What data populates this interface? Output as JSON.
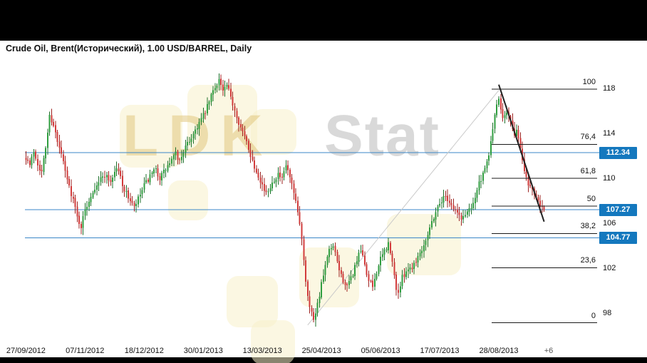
{
  "watermark": {
    "text_primary": "LDK",
    "text_secondary": "Stat",
    "block_color": "#f8f0cb"
  },
  "chart_data": {
    "type": "candlestick",
    "title": "Crude Oil, Brent(Исторический), 1.00 USD/BARREL, Daily",
    "period": "Daily",
    "y_axis": {
      "ticks": [
        118,
        114,
        110,
        106,
        102,
        98
      ],
      "min": 96.5,
      "max": 119.9
    },
    "x_axis": {
      "labels": [
        "27/09/2012",
        "07/11/2012",
        "18/12/2012",
        "30/01/2013",
        "13/03/2013",
        "25/04/2013",
        "05/06/2013",
        "17/07/2013",
        "28/08/2013"
      ],
      "future_offset_label": "+6",
      "bars_per_label": 30
    },
    "horizontal_lines": [
      {
        "price": 112.34,
        "label": "112.34",
        "color": "#3b87c8"
      },
      {
        "price": 107.27,
        "label": "107.27",
        "color": "#3b87c8"
      },
      {
        "price": 104.77,
        "label": "104.77",
        "color": "#3b87c8"
      }
    ],
    "price_tag_bg": "#1478be",
    "fibonacci": {
      "swing_low": 97.2,
      "swing_high": 118.0,
      "line_color": "#1a1a1a",
      "levels": [
        {
          "label": "100",
          "ratio": 1.0
        },
        {
          "label": "76,4",
          "ratio": 0.764
        },
        {
          "label": "61,8",
          "ratio": 0.618
        },
        {
          "label": "50",
          "ratio": 0.5
        },
        {
          "label": "38,2",
          "ratio": 0.382
        },
        {
          "label": "23,6",
          "ratio": 0.236
        },
        {
          "label": "0",
          "ratio": 0.0
        }
      ]
    },
    "trendlines": [
      {
        "name": "uptrend",
        "from_day": 143,
        "from_price": 97.0,
        "to_day": 240,
        "to_price": 117.9,
        "color": "#c9c9c9",
        "width": 1
      },
      {
        "name": "downtrend",
        "from_day": 240,
        "from_price": 118.4,
        "to_day": 263,
        "to_price": 106.2,
        "color": "#222222",
        "width": 2
      }
    ],
    "candle_colors": {
      "up": "#2f9e3f",
      "down": "#d23b3b",
      "up_dark": "#1d6f2b",
      "down_dark": "#9c221f"
    },
    "close_path": [
      [
        0,
        112.0
      ],
      [
        2,
        111.2
      ],
      [
        4,
        112.5
      ],
      [
        6,
        111.4
      ],
      [
        8,
        110.6
      ],
      [
        10,
        112.8
      ],
      [
        12,
        115.6
      ],
      [
        14,
        114.9
      ],
      [
        16,
        113.2
      ],
      [
        18,
        112.2
      ],
      [
        20,
        110.6
      ],
      [
        22,
        109.3
      ],
      [
        24,
        108.2
      ],
      [
        26,
        106.6
      ],
      [
        28,
        105.8
      ],
      [
        30,
        107.2
      ],
      [
        33,
        108.6
      ],
      [
        36,
        109.6
      ],
      [
        40,
        110.4
      ],
      [
        43,
        109.8
      ],
      [
        46,
        111.0
      ],
      [
        48,
        110.2
      ],
      [
        50,
        109.0
      ],
      [
        53,
        108.1
      ],
      [
        55,
        107.4
      ],
      [
        58,
        108.6
      ],
      [
        60,
        109.4
      ],
      [
        63,
        110.2
      ],
      [
        66,
        110.8
      ],
      [
        68,
        110.1
      ],
      [
        70,
        110.6
      ],
      [
        73,
        111.4
      ],
      [
        76,
        112.2
      ],
      [
        78,
        111.6
      ],
      [
        80,
        112.5
      ],
      [
        83,
        113.4
      ],
      [
        86,
        114.4
      ],
      [
        88,
        115.0
      ],
      [
        90,
        115.6
      ],
      [
        92,
        116.4
      ],
      [
        94,
        117.4
      ],
      [
        96,
        118.2
      ],
      [
        98,
        118.9
      ],
      [
        100,
        117.8
      ],
      [
        102,
        118.3
      ],
      [
        104,
        117.2
      ],
      [
        106,
        116.2
      ],
      [
        108,
        115.1
      ],
      [
        110,
        114.1
      ],
      [
        112,
        113.3
      ],
      [
        114,
        112.2
      ],
      [
        116,
        111.1
      ],
      [
        118,
        110.4
      ],
      [
        120,
        109.5
      ],
      [
        122,
        108.6
      ],
      [
        124,
        109.4
      ],
      [
        126,
        110.0
      ],
      [
        128,
        110.4
      ],
      [
        130,
        109.9
      ],
      [
        132,
        111.2
      ],
      [
        134,
        110.1
      ],
      [
        136,
        108.6
      ],
      [
        138,
        107.0
      ],
      [
        140,
        104.8
      ],
      [
        142,
        101.0
      ],
      [
        144,
        98.6
      ],
      [
        146,
        97.6
      ],
      [
        148,
        98.9
      ],
      [
        150,
        100.6
      ],
      [
        152,
        102.2
      ],
      [
        154,
        103.6
      ],
      [
        156,
        103.9
      ],
      [
        158,
        102.6
      ],
      [
        160,
        101.4
      ],
      [
        163,
        100.3
      ],
      [
        166,
        101.6
      ],
      [
        168,
        102.8
      ],
      [
        170,
        103.6
      ],
      [
        172,
        102.4
      ],
      [
        174,
        100.9
      ],
      [
        176,
        100.4
      ],
      [
        178,
        101.8
      ],
      [
        180,
        102.8
      ],
      [
        182,
        103.6
      ],
      [
        184,
        104.2
      ],
      [
        186,
        102.5
      ],
      [
        188,
        100.3
      ],
      [
        189,
        99.9
      ],
      [
        191,
        101.2
      ],
      [
        193,
        101.9
      ],
      [
        196,
        102.2
      ],
      [
        199,
        103.1
      ],
      [
        202,
        104.2
      ],
      [
        205,
        105.7
      ],
      [
        208,
        107.1
      ],
      [
        210,
        107.9
      ],
      [
        213,
        108.5
      ],
      [
        215,
        108.0
      ],
      [
        217,
        107.4
      ],
      [
        219,
        107.0
      ],
      [
        221,
        106.4
      ],
      [
        223,
        106.9
      ],
      [
        226,
        107.6
      ],
      [
        228,
        108.4
      ],
      [
        230,
        109.6
      ],
      [
        232,
        110.3
      ],
      [
        234,
        111.4
      ],
      [
        236,
        113.2
      ],
      [
        238,
        115.8
      ],
      [
        240,
        117.0
      ],
      [
        242,
        115.6
      ],
      [
        244,
        116.1
      ],
      [
        246,
        115.1
      ],
      [
        248,
        113.6
      ],
      [
        249,
        114.6
      ],
      [
        251,
        112.6
      ],
      [
        253,
        110.9
      ],
      [
        255,
        109.6
      ],
      [
        257,
        109.1
      ],
      [
        259,
        108.6
      ],
      [
        261,
        107.8
      ],
      [
        263,
        107.4
      ]
    ]
  }
}
